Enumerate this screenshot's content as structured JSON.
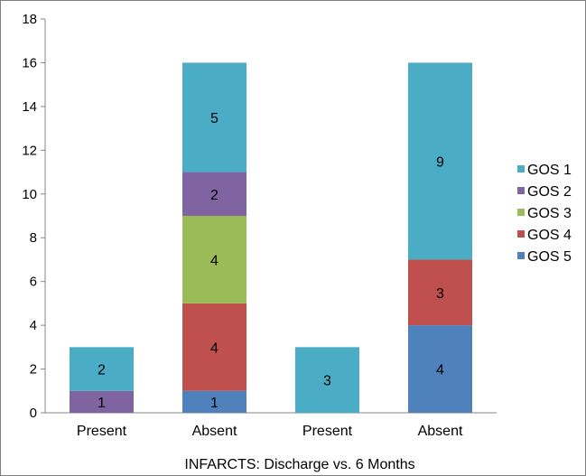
{
  "chart_data": {
    "type": "bar",
    "stacked": true,
    "title": "",
    "xlabel": "INFARCTS: Discharge vs.  6 Months",
    "ylabel": "",
    "ylim": [
      0,
      18
    ],
    "yticks": [
      0,
      2,
      4,
      6,
      8,
      10,
      12,
      14,
      16,
      18
    ],
    "grid": false,
    "legend_position": "right",
    "categories": [
      "Present",
      "Absent",
      "Present",
      "Absent"
    ],
    "series": [
      {
        "name": "GOS 5",
        "color": "#4f81bd",
        "values": [
          0,
          1,
          0,
          4
        ]
      },
      {
        "name": "GOS 4",
        "color": "#c0504d",
        "values": [
          0,
          4,
          0,
          3
        ]
      },
      {
        "name": "GOS 3",
        "color": "#9bbb59",
        "values": [
          0,
          4,
          0,
          0
        ]
      },
      {
        "name": "GOS 2",
        "color": "#8064a2",
        "values": [
          1,
          2,
          0,
          0
        ]
      },
      {
        "name": "GOS 1",
        "color": "#4bacc6",
        "values": [
          2,
          5,
          3,
          9
        ]
      }
    ],
    "legend_order": [
      "GOS 1",
      "GOS 2",
      "GOS 3",
      "GOS 4",
      "GOS 5"
    ]
  }
}
